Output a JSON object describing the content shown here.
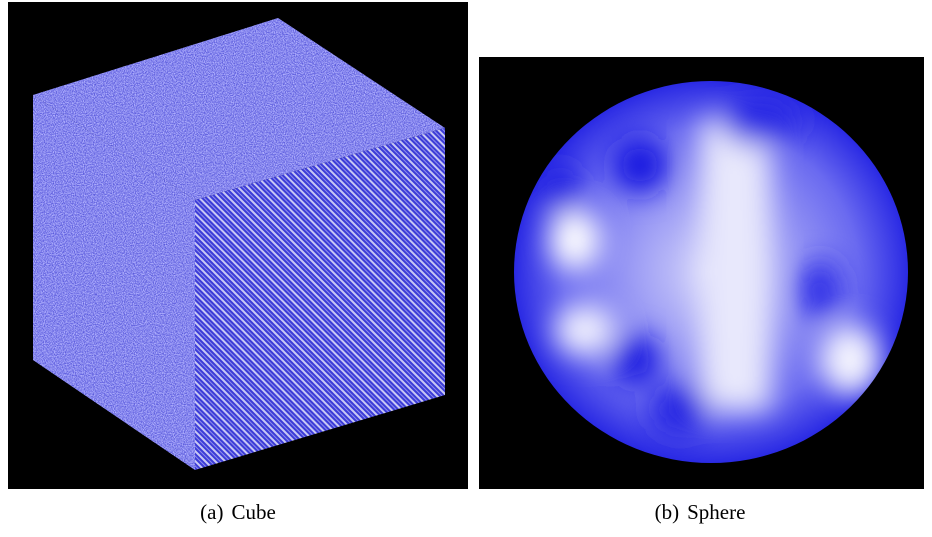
{
  "panels": [
    {
      "label": "(a)",
      "caption": "Cube"
    },
    {
      "label": "(b)",
      "caption": "Sphere"
    }
  ]
}
